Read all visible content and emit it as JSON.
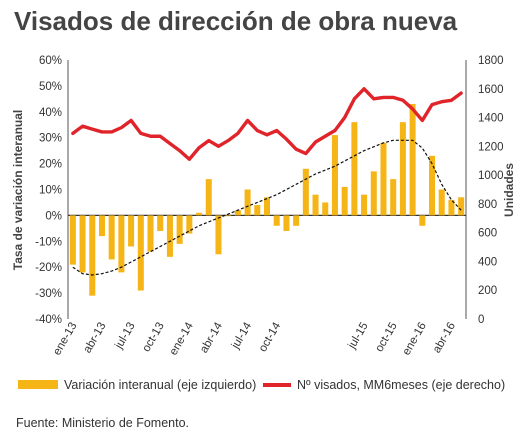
{
  "chart_data": {
    "type": "bar",
    "title": "Visados de dirección de obra nueva",
    "ylabel_left": "Tasa de variación interanual",
    "ylabel_right": "Unidades",
    "ylim_left": [
      -40,
      60
    ],
    "ylim_right": [
      0,
      1800
    ],
    "yticks_left": [
      "-40%",
      "-30%",
      "-20%",
      "-10%",
      "0%",
      "10%",
      "20%",
      "30%",
      "40%",
      "50%",
      "60%"
    ],
    "yticks_right": [
      "0",
      "200",
      "400",
      "600",
      "800",
      "1000",
      "1200",
      "1400",
      "1600",
      "1800"
    ],
    "x_tick_labels": [
      "ene-13",
      "abr-13",
      "jul-13",
      "oct-13",
      "ene-14",
      "abr-14",
      "jul-14",
      "oct-14",
      "jul-15",
      "oct-15",
      "ene-16",
      "abr-16"
    ],
    "series": [
      {
        "name": "Variación interanual (eje izquierdo)",
        "type": "bar",
        "axis": "left",
        "color": "#f5b517",
        "values": [
          -19,
          -22,
          -31,
          -8,
          -17,
          -22,
          -12,
          -29,
          -14,
          -6,
          -16,
          -11,
          -7,
          1,
          14,
          -15,
          0,
          2,
          10,
          4,
          7,
          -4,
          -6,
          -4,
          18,
          8,
          5,
          31,
          11,
          36,
          8,
          17,
          28,
          14,
          36,
          43,
          -4,
          23,
          10,
          6,
          7
        ]
      },
      {
        "name": "Nº visados, MM6meses (eje derecho)",
        "type": "line",
        "axis": "right",
        "color": "#e0242a",
        "values": [
          1290,
          1340,
          1320,
          1300,
          1300,
          1330,
          1380,
          1290,
          1270,
          1270,
          1220,
          1170,
          1110,
          1190,
          1240,
          1200,
          1240,
          1290,
          1380,
          1310,
          1280,
          1310,
          1250,
          1180,
          1150,
          1230,
          1270,
          1310,
          1400,
          1530,
          1600,
          1530,
          1540,
          1540,
          1520,
          1460,
          1380,
          1490,
          1510,
          1520,
          1570
        ]
      },
      {
        "name": "trend",
        "type": "line",
        "style": "dashed",
        "axis": "left",
        "color": "#111111",
        "values": [
          -20,
          -22.5,
          -23,
          -22.5,
          -21.5,
          -20,
          -18,
          -16,
          -14,
          -12,
          -10,
          -8,
          -6,
          -4,
          -2.5,
          -1,
          0.5,
          2,
          3.5,
          5,
          6.5,
          8,
          10,
          12,
          14,
          16,
          17.5,
          19,
          21,
          23,
          25,
          26.5,
          28,
          29,
          29,
          29,
          26,
          20,
          12,
          6,
          2
        ]
      }
    ],
    "legend": [
      {
        "label": "Variación interanual (eje izquierdo)",
        "color": "#f5b517",
        "shape": "box"
      },
      {
        "label": "Nº visados, MM6meses (eje derecho)",
        "color": "#e0242a",
        "shape": "line"
      }
    ],
    "source": "Fuente: Ministerio de Fomento.",
    "grid": false
  }
}
